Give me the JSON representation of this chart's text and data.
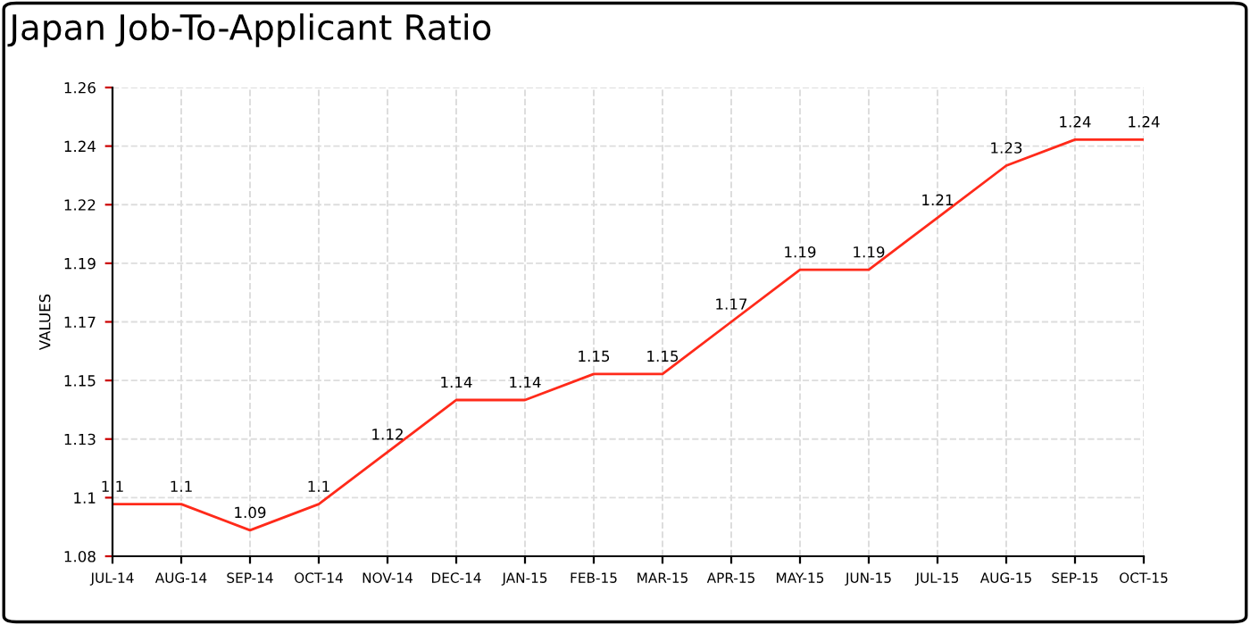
{
  "chart_data": {
    "type": "line",
    "title": "Japan Job-To-Applicant Ratio",
    "ylabel": "VALUES",
    "categories": [
      "JUL-14",
      "AUG-14",
      "SEP-14",
      "OCT-14",
      "NOV-14",
      "DEC-14",
      "JAN-15",
      "FEB-15",
      "MAR-15",
      "APR-15",
      "MAY-15",
      "JUN-15",
      "JUL-15",
      "AUG-15",
      "SEP-15",
      "OCT-15"
    ],
    "series": [
      {
        "color": "#ff2a1a",
        "values": [
          1.1,
          1.1,
          1.09,
          1.1,
          1.12,
          1.14,
          1.14,
          1.15,
          1.15,
          1.17,
          1.19,
          1.19,
          1.21,
          1.23,
          1.24,
          1.24
        ]
      }
    ],
    "ylim": [
      1.08,
      1.26
    ],
    "yticks": [
      1.08,
      {
        "value": 1.1025,
        "label": "1.1"
      },
      {
        "value": 1.125,
        "label": "1.13"
      },
      {
        "value": 1.1475,
        "label": "1.15"
      },
      1.17,
      {
        "value": 1.1925,
        "label": "1.19"
      },
      {
        "value": 1.215,
        "label": "1.22"
      },
      {
        "value": 1.2375,
        "label": "1.24"
      },
      1.26
    ],
    "grid": true,
    "data_labels": true,
    "line_style": "solid",
    "marker": "none",
    "legend": false
  }
}
